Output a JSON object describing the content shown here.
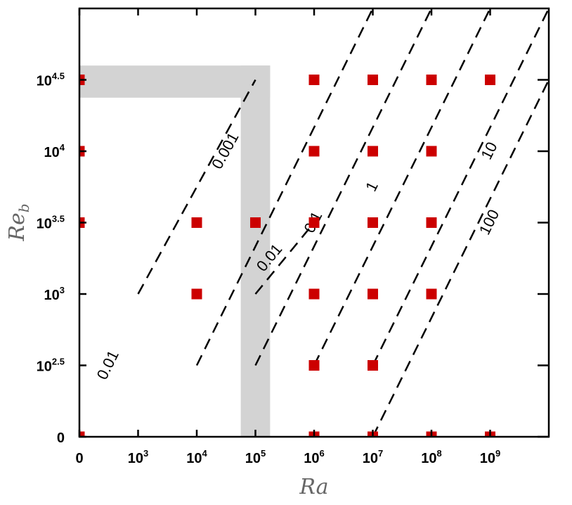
{
  "chart_data": {
    "type": "scatter",
    "title": "",
    "xlabel": "Ra",
    "ylabel": "Re",
    "ylabel_sub": "b",
    "xscale": "log",
    "yscale": "log",
    "xlim": [
      100,
      10000000000
    ],
    "ylim": [
      100,
      100000
    ],
    "grid": false,
    "x_ticks": [
      {
        "value": 100,
        "base": "0",
        "exp": ""
      },
      {
        "value": 1000,
        "base": "10",
        "exp": "3"
      },
      {
        "value": 10000,
        "base": "10",
        "exp": "4"
      },
      {
        "value": 100000,
        "base": "10",
        "exp": "5"
      },
      {
        "value": 1000000,
        "base": "10",
        "exp": "6"
      },
      {
        "value": 10000000,
        "base": "10",
        "exp": "7"
      },
      {
        "value": 100000000,
        "base": "10",
        "exp": "8"
      },
      {
        "value": 1000000000,
        "base": "10",
        "exp": "9"
      }
    ],
    "y_ticks": [
      {
        "value": 100,
        "base": "0",
        "exp": ""
      },
      {
        "value": 316.23,
        "base": "10",
        "exp": "2.5"
      },
      {
        "value": 1000,
        "base": "10",
        "exp": "3"
      },
      {
        "value": 3162.3,
        "base": "10",
        "exp": "3.5"
      },
      {
        "value": 10000,
        "base": "10",
        "exp": "4"
      },
      {
        "value": 31623,
        "base": "10",
        "exp": "4.5"
      }
    ],
    "shaded_regions": [
      {
        "axis": "x",
        "from": 56234,
        "to": 177828,
        "color": "#d3d3d3",
        "ymax": 39811
      },
      {
        "axis": "y",
        "from": 23714,
        "to": 39811,
        "color": "#d3d3d3",
        "xmax": 177828
      }
    ],
    "points": [
      {
        "x": 100,
        "y": 31623
      },
      {
        "x": 100,
        "y": 10000
      },
      {
        "x": 100,
        "y": 3162.3
      },
      {
        "x": 100,
        "y": 100
      },
      {
        "x": 10000,
        "y": 3162.3
      },
      {
        "x": 10000,
        "y": 1000
      },
      {
        "x": 100000,
        "y": 3162.3
      },
      {
        "x": 1000000,
        "y": 31623
      },
      {
        "x": 1000000,
        "y": 10000
      },
      {
        "x": 1000000,
        "y": 3162.3
      },
      {
        "x": 1000000,
        "y": 1000
      },
      {
        "x": 1000000,
        "y": 316.23
      },
      {
        "x": 1000000,
        "y": 100
      },
      {
        "x": 10000000,
        "y": 31623
      },
      {
        "x": 10000000,
        "y": 10000
      },
      {
        "x": 10000000,
        "y": 3162.3
      },
      {
        "x": 10000000,
        "y": 1000
      },
      {
        "x": 10000000,
        "y": 316.23
      },
      {
        "x": 10000000,
        "y": 100
      },
      {
        "x": 100000000,
        "y": 31623
      },
      {
        "x": 100000000,
        "y": 10000
      },
      {
        "x": 100000000,
        "y": 3162.3
      },
      {
        "x": 100000000,
        "y": 1000
      },
      {
        "x": 100000000,
        "y": 100
      },
      {
        "x": 1000000000,
        "y": 31623
      },
      {
        "x": 1000000000,
        "y": 100
      }
    ],
    "marker_color": "#cc0000",
    "reference_lines": [
      {
        "label": "0.001",
        "x1": 1000,
        "y1": 1000,
        "x2": 100000,
        "y2": 31623,
        "label_x": 31623,
        "label_y": 10000
      },
      {
        "label": "0.01",
        "x1": 10000,
        "y1": 316.23,
        "x2": 10000000,
        "y2": 100000,
        "label_x": 316.23,
        "label_y": 316.23
      },
      {
        "label": "0.1",
        "x1": 100000,
        "y1": 316.23,
        "x2": 100000000,
        "y2": 100000,
        "label_x": 1000000,
        "label_y": 3162.3
      },
      {
        "label": "1",
        "x1": 1000000,
        "y1": 316.23,
        "x2": 1000000000,
        "y2": 100000,
        "label_x": 10000000,
        "label_y": 5623.4
      },
      {
        "label": "10",
        "x1": 10000000,
        "y1": 316.23,
        "x2": 10000000000,
        "y2": 100000,
        "label_x": 1000000000,
        "label_y": 10000
      },
      {
        "label": "100",
        "x1": 10000000,
        "y1": 100,
        "x2": 10000000000,
        "y2": 31623,
        "label_x": 1000000000,
        "label_y": 3162.3
      },
      {
        "label": "0.01",
        "x1": 100000,
        "y1": 1000,
        "x2": 1000000,
        "y2": 3162.3,
        "label_x": 177828,
        "label_y": 1778.3
      },
      {
        "label": "0.01",
        "x1": 100000,
        "y1": 1000,
        "x2": 1000000,
        "y2": 3162.3,
        "label_x": 177828,
        "label_y": 1778.3
      },
      {
        "label": "0.01",
        "x1": 100000,
        "y1": 1000,
        "x2": 1000000,
        "y2": 3162.3,
        "label_x": 177828,
        "label_y": 1778.3
      },
      {
        "label": "0.01",
        "x1": 100000,
        "y1": 1000,
        "x2": 1000000,
        "y2": 3162.3,
        "label_x": 177828,
        "label_y": 1778.3
      },
      {
        "label": "0.01",
        "x1": 100000,
        "y1": 1000,
        "x2": 1000000,
        "y2": 3162.3,
        "label_x": 177828,
        "label_y": 1778.3
      },
      {
        "label": "0.01",
        "x1": 100000,
        "y1": 1000,
        "x2": 1000000,
        "y2": 3162.3,
        "label_x": 177828,
        "label_y": 1778.3
      },
      {
        "label": "0.01",
        "x1": 100000,
        "y1": 1000,
        "x2": 1000000,
        "y2": 3162.3,
        "label_x": 177828,
        "label_y": 1778.3
      },
      {
        "label": "0.01",
        "x1": 100000,
        "y1": 1000,
        "x2": 1000000,
        "y2": 3162.3,
        "label_x": 177828,
        "label_y": 1778.3
      },
      {
        "label": "0.01",
        "x1": 100000,
        "y1": 1000,
        "x2": 1000000,
        "y2": 3162.3,
        "label_x": 177828,
        "label_y": 1778.3
      },
      {
        "label": "0.01",
        "x1": 100000,
        "y1": 1000,
        "x2": 1000000,
        "y2": 3162.3,
        "label_x": 177828,
        "label_y": 1778.3
      },
      {
        "label": "0.01",
        "x1": 100000,
        "y1": 1000,
        "x2": 1000000,
        "y2": 3162.3,
        "label_x": 177828,
        "label_y": 1778.3
      },
      {
        "label": "0.01",
        "x1": 100000,
        "y1": 1000,
        "x2": 1000000,
        "y2": 3162.3,
        "label_x": 177828,
        "label_y": 1778.3
      },
      {
        "label": "0.01",
        "x1": 100000,
        "y1": 1000,
        "x2": 1000000,
        "y2": 3162.3,
        "label_x": 177828,
        "label_y": 1778.3
      },
      {
        "label": "0.01",
        "x1": 100000,
        "y1": 1000,
        "x2": 1000000,
        "y2": 3162.3,
        "label_x": 177828,
        "label_y": 1778.3
      },
      {
        "label": "0.01",
        "x1": 100000,
        "y1": 1000,
        "x2": 1000000,
        "y2": 3162.3,
        "label_x": 177828,
        "label_y": 1778.3
      },
      {
        "label": "0.01",
        "x1": 100000,
        "y1": 1000,
        "x2": 1000000,
        "y2": 3162.3,
        "label_x": 177828,
        "label_y": 1778.3
      },
      {
        "label": "0.01",
        "x1": 100000,
        "y1": 1000,
        "x2": 1000000,
        "y2": 3162.3,
        "label_x": 177828,
        "label_y": 1778.3
      },
      {
        "label": "0.01",
        "x1": 100000,
        "y1": 1000,
        "x2": 1000000,
        "y2": 3162.3,
        "label_x": 177828,
        "label_y": 1778.3
      },
      {
        "label": "0.01",
        "x1": 100000,
        "y1": 1000,
        "x2": 1000000,
        "y2": 3162.3,
        "label_x": 177828,
        "label_y": 1778.3
      },
      {
        "label": "0.01",
        "x1": 100000,
        "y1": 1000,
        "x2": 1000000,
        "y2": 3162.3,
        "label_x": 177828,
        "label_y": 1778.3
      },
      {
        "label": "0.01",
        "x1": 100000,
        "y1": 1000,
        "x2": 1000000,
        "y2": 3162.3,
        "label_x": 177828,
        "label_y": 1778.3
      },
      {
        "label": "0.01",
        "x1": 100000,
        "y1": 1000,
        "x2": 1000000,
        "y2": 3162.3,
        "label_x": 177828,
        "label_y": 1778.3
      },
      {
        "label": "0.01",
        "x1": 100000,
        "y1": 1000,
        "x2": 1000000,
        "y2": 3162.3,
        "label_x": 177828,
        "label_y": 1778.3
      },
      {
        "label": "0.01",
        "x1": 100000,
        "y1": 1000,
        "x2": 1000000,
        "y2": 3162.3,
        "label_x": 177828,
        "label_y": 1778.3
      },
      {
        "label": "0.01",
        "x1": 100000,
        "y1": 1000,
        "x2": 1000000,
        "y2": 3162.3,
        "label_x": 177828,
        "label_y": 1778.3
      }
    ]
  }
}
